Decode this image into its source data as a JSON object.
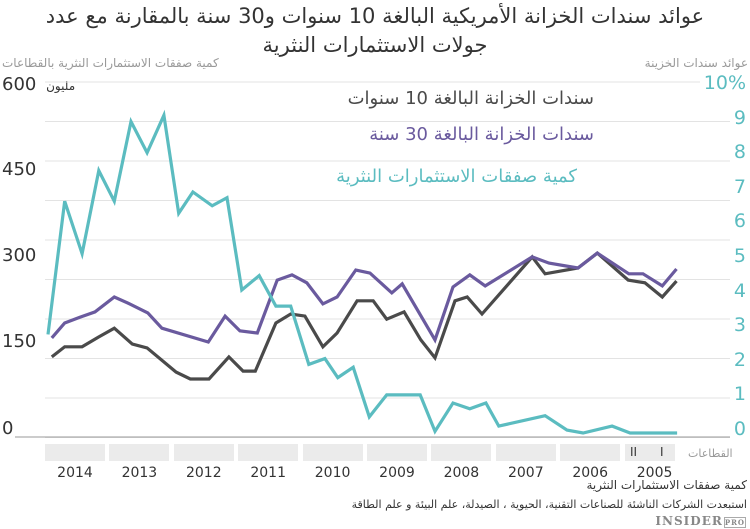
{
  "title": "عوائد سندات الخزانة الأمريكية البالغة 10 سنوات و30 سنة بالمقارنة مع عدد جولات الاستثمارات النثرية",
  "title_line1": "عوائد سندات الخزانة الأمريكية البالغة  10 سنوات و30 سنة بالمقارنة مع عدد",
  "title_line2": "جولات الاستثمارات النثرية",
  "colors": {
    "yield_10y": "#4a4a4a",
    "yield_30y": "#6a5a9e",
    "deals": "#5bbcc0",
    "grid": "#e3e3e3",
    "sector_bar": "#ebebeb"
  },
  "chart_data": {
    "type": "line",
    "x_reversed": true,
    "x_ticks": [
      "2014",
      "2013",
      "2012",
      "2011",
      "2010",
      "2009",
      "2008",
      "2007",
      "2006",
      "2005"
    ],
    "y_left": {
      "title": "كمية صفقات الاستثمارات النثرية بالقطاعات",
      "unit": "مليون",
      "ticks": [
        "600",
        "450",
        "300",
        "150",
        "0"
      ],
      "range": [
        0,
        600
      ]
    },
    "y_right": {
      "title": "عوائد سندات الخزينة",
      "ticks": [
        "10%",
        "9",
        "8",
        "7",
        "6",
        "5",
        "4",
        "3",
        "2",
        "1",
        "0"
      ],
      "range": [
        0,
        10
      ]
    },
    "grid": true,
    "series": [
      {
        "name": "سندات الخزانة البالغة 10 سنوات",
        "axis": "right",
        "color": "#4a4a4a",
        "points": [
          [
            2014.86,
            2.2
          ],
          [
            2014.66,
            2.49
          ],
          [
            2014.39,
            2.49
          ],
          [
            2014.14,
            2.77
          ],
          [
            2013.89,
            3.03
          ],
          [
            2013.61,
            2.57
          ],
          [
            2013.38,
            2.46
          ],
          [
            2012.93,
            1.76
          ],
          [
            2012.71,
            1.56
          ],
          [
            2012.42,
            1.56
          ],
          [
            2012.11,
            2.2
          ],
          [
            2011.89,
            1.79
          ],
          [
            2011.7,
            1.79
          ],
          [
            2011.38,
            3.18
          ],
          [
            2011.15,
            3.44
          ],
          [
            2010.93,
            3.38
          ],
          [
            2010.65,
            2.49
          ],
          [
            2010.43,
            2.89
          ],
          [
            2010.12,
            3.82
          ],
          [
            2009.87,
            3.82
          ],
          [
            2009.66,
            3.29
          ],
          [
            2009.39,
            3.5
          ],
          [
            2009.13,
            2.69
          ],
          [
            2008.91,
            2.17
          ],
          [
            2008.6,
            3.82
          ],
          [
            2008.41,
            3.93
          ],
          [
            2008.18,
            3.44
          ],
          [
            2007.4,
            5.09
          ],
          [
            2007.2,
            4.6
          ],
          [
            2006.69,
            4.77
          ],
          [
            2006.39,
            5.2
          ],
          [
            2005.91,
            4.42
          ],
          [
            2005.65,
            4.34
          ],
          [
            2005.38,
            3.93
          ],
          [
            2005.16,
            4.39
          ]
        ]
      },
      {
        "name": "سندات الخزانة البالغة 30 سنة",
        "axis": "right",
        "color": "#6a5a9e",
        "points": [
          [
            2014.86,
            2.75
          ],
          [
            2014.66,
            3.18
          ],
          [
            2014.42,
            3.35
          ],
          [
            2014.19,
            3.5
          ],
          [
            2013.89,
            3.93
          ],
          [
            2013.65,
            3.73
          ],
          [
            2013.37,
            3.47
          ],
          [
            2013.15,
            3.03
          ],
          [
            2012.43,
            2.63
          ],
          [
            2012.17,
            3.38
          ],
          [
            2011.94,
            2.95
          ],
          [
            2011.67,
            2.89
          ],
          [
            2011.36,
            4.42
          ],
          [
            2011.13,
            4.57
          ],
          [
            2010.9,
            4.34
          ],
          [
            2010.65,
            3.73
          ],
          [
            2010.43,
            3.93
          ],
          [
            2010.14,
            4.71
          ],
          [
            2009.92,
            4.62
          ],
          [
            2009.58,
            4.05
          ],
          [
            2009.42,
            4.31
          ],
          [
            2008.91,
            2.69
          ],
          [
            2008.63,
            4.22
          ],
          [
            2008.37,
            4.57
          ],
          [
            2008.13,
            4.25
          ],
          [
            2007.4,
            5.09
          ],
          [
            2007.14,
            4.91
          ],
          [
            2006.69,
            4.77
          ],
          [
            2006.39,
            5.2
          ],
          [
            2005.9,
            4.6
          ],
          [
            2005.68,
            4.6
          ],
          [
            2005.38,
            4.25
          ],
          [
            2005.16,
            4.74
          ]
        ]
      },
      {
        "name": "كمية صفقات الاستثمارات النثرية",
        "axis": "left",
        "color": "#5bbcc0",
        "points": [
          [
            2014.92,
            171
          ],
          [
            2014.66,
            402
          ],
          [
            2014.39,
            311
          ],
          [
            2014.13,
            455
          ],
          [
            2013.89,
            402
          ],
          [
            2013.63,
            540
          ],
          [
            2013.38,
            486
          ],
          [
            2013.12,
            551
          ],
          [
            2012.89,
            381
          ],
          [
            2012.67,
            418
          ],
          [
            2012.37,
            394
          ],
          [
            2012.14,
            408
          ],
          [
            2011.91,
            248
          ],
          [
            2011.64,
            273
          ],
          [
            2011.38,
            220
          ],
          [
            2011.15,
            220
          ],
          [
            2010.87,
            119
          ],
          [
            2010.62,
            129
          ],
          [
            2010.42,
            96
          ],
          [
            2010.18,
            114
          ],
          [
            2009.93,
            28
          ],
          [
            2009.66,
            66
          ],
          [
            2009.14,
            66
          ],
          [
            2008.91,
            3
          ],
          [
            2008.63,
            52
          ],
          [
            2008.37,
            42
          ],
          [
            2008.12,
            52
          ],
          [
            2007.92,
            12
          ],
          [
            2007.2,
            30
          ],
          [
            2006.86,
            5
          ],
          [
            2006.61,
            0
          ],
          [
            2006.16,
            12
          ],
          [
            2005.88,
            0
          ],
          [
            2005.15,
            0
          ]
        ]
      }
    ]
  },
  "sectors": {
    "label": "القطاعات",
    "markers": [
      "I",
      "II"
    ]
  },
  "footer": {
    "source_label": "كمية صفقات الاستثمارات النثرية",
    "note": "استبعدت الشركات الناشئة للصناعات التقنية، الحيوية ، الصيدلة، علم البيئة و علم الطاقة",
    "logo": "INSIDER PRO"
  }
}
